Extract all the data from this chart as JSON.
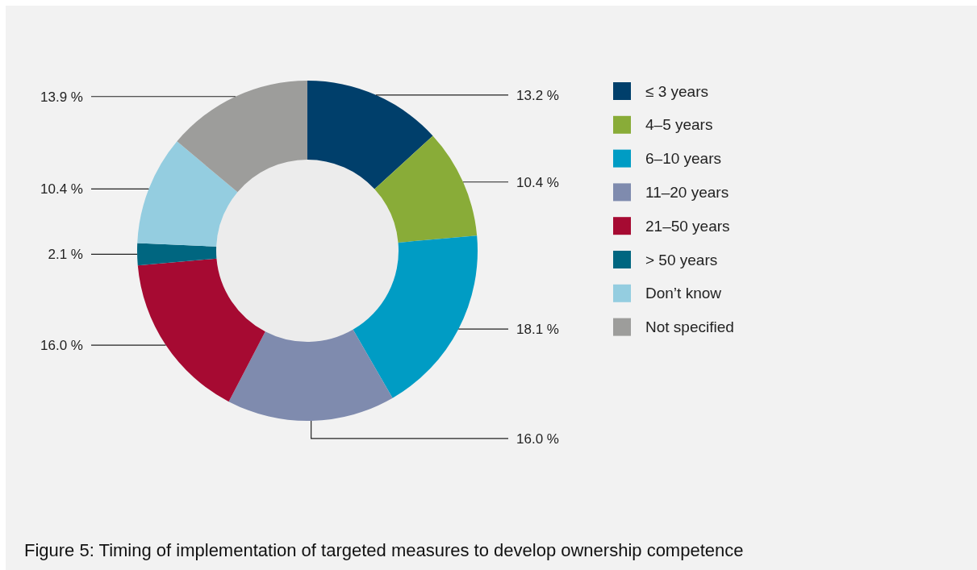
{
  "chart_data": {
    "type": "donut",
    "title": "Figure 5: Timing of implementation of targeted measures to develop ownership competence",
    "categories": [
      "≤ 3 years",
      "4–5 years",
      "6–10 years",
      "11–20 years",
      "21–50 years",
      "> 50 years",
      "Don’t know",
      "Not specified"
    ],
    "values": [
      13.2,
      10.4,
      18.1,
      16.0,
      16.0,
      2.1,
      10.4,
      13.9
    ],
    "value_labels": [
      "13.2 %",
      "10.4 %",
      "18.1 %",
      "16.0 %",
      "16.0 %",
      "2.1 %",
      "10.4 %",
      "13.9 %"
    ],
    "colors": [
      "#003f6b",
      "#89ac38",
      "#009cc4",
      "#7f8bae",
      "#a60a32",
      "#006680",
      "#94cde0",
      "#9d9d9b"
    ],
    "legend": "right"
  }
}
